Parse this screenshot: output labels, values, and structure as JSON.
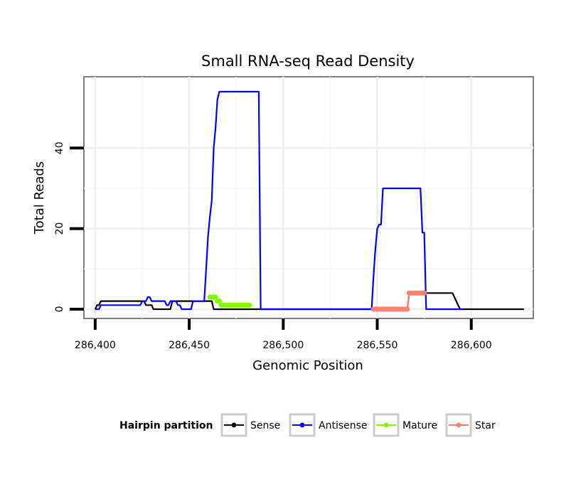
{
  "chart_data": {
    "type": "line",
    "title": "Small RNA-seq Read Density",
    "xlabel": "Genomic Position",
    "ylabel": "Total Reads",
    "xlim": [
      286394,
      286633
    ],
    "ylim": [
      -2.3,
      57.7
    ],
    "x_ticks": [
      286400,
      286450,
      286500,
      286550,
      286600
    ],
    "x_tick_labels": [
      "286,400",
      "286,450",
      "286,500",
      "286,550",
      "286,600"
    ],
    "y_ticks": [
      0,
      20,
      40
    ],
    "y_tick_labels": [
      "0",
      "20",
      "40"
    ],
    "grid": true,
    "legend": {
      "title": "Hairpin partition",
      "position": "bottom",
      "entries": [
        "Sense",
        "Antisense",
        "Mature",
        "Star"
      ]
    },
    "colors": {
      "Sense": "#000000",
      "Antisense": "#0000ff",
      "Mature": "#7cfc00",
      "Star": "#fa8072"
    },
    "series": [
      {
        "name": "Sense",
        "style": "line",
        "points": [
          [
            286400,
            0
          ],
          [
            286401,
            1
          ],
          [
            286402,
            1
          ],
          [
            286403,
            2
          ],
          [
            286426,
            2
          ],
          [
            286427,
            1
          ],
          [
            286430,
            1
          ],
          [
            286431,
            0
          ],
          [
            286440,
            0
          ],
          [
            286441,
            2
          ],
          [
            286462,
            2
          ],
          [
            286463,
            0
          ],
          [
            286566,
            0
          ],
          [
            286567,
            4
          ],
          [
            286590,
            4
          ],
          [
            286594,
            0
          ],
          [
            286628,
            0
          ]
        ]
      },
      {
        "name": "Antisense",
        "style": "line",
        "points": [
          [
            286400,
            0
          ],
          [
            286402,
            0
          ],
          [
            286403,
            1
          ],
          [
            286424,
            1
          ],
          [
            286425,
            2
          ],
          [
            286427,
            2
          ],
          [
            286428,
            3
          ],
          [
            286429,
            3
          ],
          [
            286430,
            2
          ],
          [
            286437,
            2
          ],
          [
            286438,
            1
          ],
          [
            286439,
            1
          ],
          [
            286440,
            2
          ],
          [
            286443,
            2
          ],
          [
            286444,
            1
          ],
          [
            286445,
            1
          ],
          [
            286446,
            0
          ],
          [
            286451,
            0
          ],
          [
            286452,
            2
          ],
          [
            286458,
            2
          ],
          [
            286459,
            10
          ],
          [
            286460,
            18
          ],
          [
            286461,
            23
          ],
          [
            286462,
            27
          ],
          [
            286463,
            40
          ],
          [
            286464,
            45
          ],
          [
            286465,
            52
          ],
          [
            286466,
            54
          ],
          [
            286487,
            54
          ],
          [
            286488,
            0
          ],
          [
            286547,
            0
          ],
          [
            286548,
            8
          ],
          [
            286549,
            15
          ],
          [
            286550,
            20
          ],
          [
            286551,
            21
          ],
          [
            286552,
            21
          ],
          [
            286553,
            30
          ],
          [
            286573,
            30
          ],
          [
            286574,
            19
          ],
          [
            286575,
            19
          ],
          [
            286576,
            0
          ],
          [
            286595,
            0
          ]
        ]
      },
      {
        "name": "Mature",
        "style": "points",
        "points": [
          [
            286461,
            3
          ],
          [
            286462,
            3
          ],
          [
            286463,
            3
          ],
          [
            286464,
            3
          ],
          [
            286465,
            2
          ],
          [
            286466,
            2
          ],
          [
            286467,
            1
          ],
          [
            286468,
            1
          ],
          [
            286469,
            1
          ],
          [
            286470,
            1
          ],
          [
            286471,
            1
          ],
          [
            286472,
            1
          ],
          [
            286473,
            1
          ],
          [
            286474,
            1
          ],
          [
            286475,
            1
          ],
          [
            286476,
            1
          ],
          [
            286477,
            1
          ],
          [
            286478,
            1
          ],
          [
            286479,
            1
          ],
          [
            286480,
            1
          ],
          [
            286481,
            1
          ],
          [
            286482,
            1
          ]
        ]
      },
      {
        "name": "Star",
        "style": "points",
        "points": [
          [
            286548,
            0
          ],
          [
            286549,
            0
          ],
          [
            286550,
            0
          ],
          [
            286551,
            0
          ],
          [
            286552,
            0
          ],
          [
            286553,
            0
          ],
          [
            286554,
            0
          ],
          [
            286555,
            0
          ],
          [
            286556,
            0
          ],
          [
            286557,
            0
          ],
          [
            286558,
            0
          ],
          [
            286559,
            0
          ],
          [
            286560,
            0
          ],
          [
            286561,
            0
          ],
          [
            286562,
            0
          ],
          [
            286563,
            0
          ],
          [
            286564,
            0
          ],
          [
            286565,
            0
          ],
          [
            286566,
            0
          ],
          [
            286567,
            4
          ],
          [
            286568,
            4
          ],
          [
            286569,
            4
          ],
          [
            286570,
            4
          ],
          [
            286571,
            4
          ],
          [
            286572,
            4
          ],
          [
            286573,
            4
          ],
          [
            286574,
            4
          ],
          [
            286575,
            4
          ]
        ]
      }
    ]
  }
}
